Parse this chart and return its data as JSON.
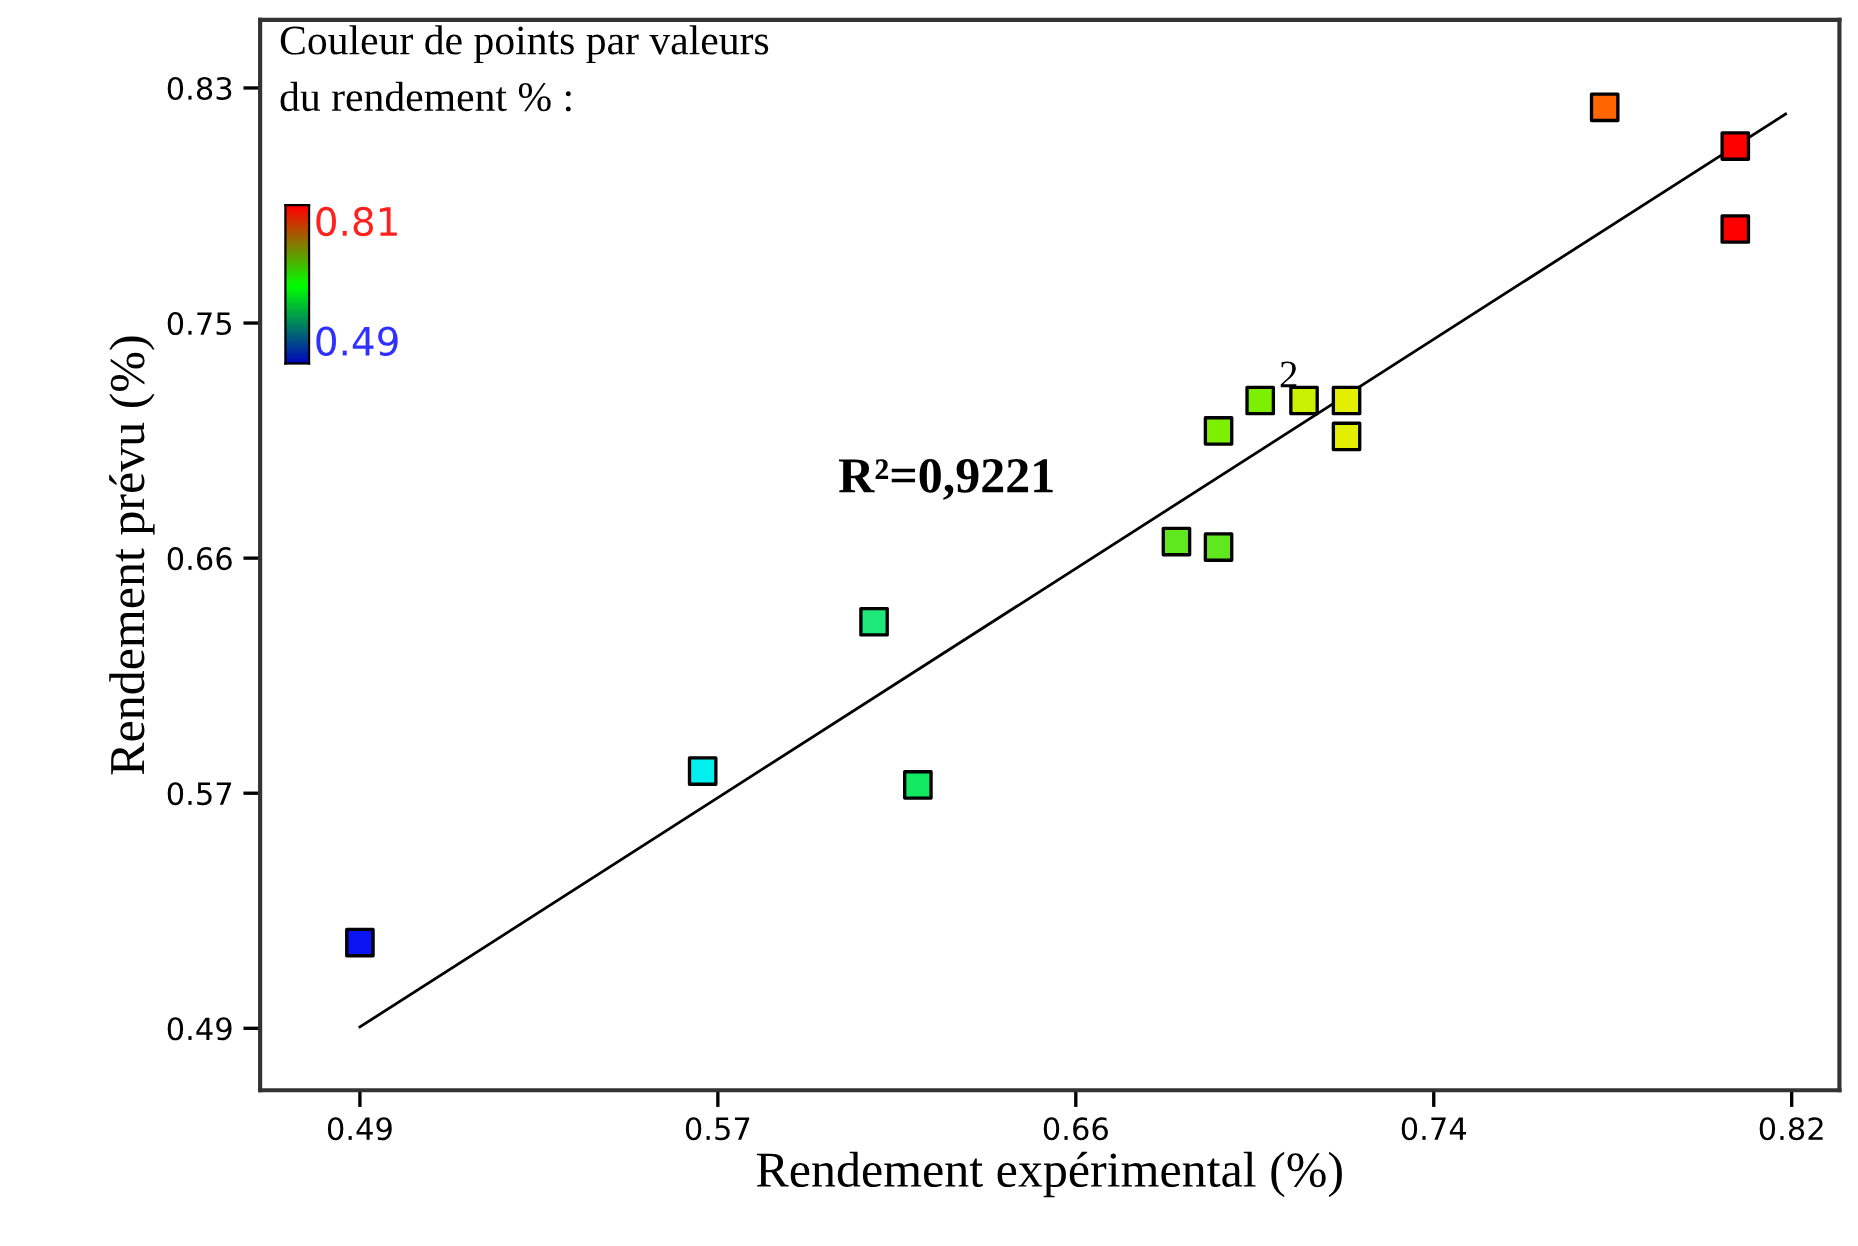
{
  "chart_data": {
    "type": "scatter",
    "xlabel": "Rendement expérimental (%)",
    "ylabel": "Rendement prévu (%)",
    "series": [
      {
        "type": "scatter",
        "marker": "square",
        "x": [
          0.49,
          0.569,
          0.6085,
          0.6186,
          0.6782,
          0.6879,
          0.6879,
          0.6975,
          0.7076,
          0.7174,
          0.7174,
          0.7769,
          0.807,
          0.807
        ],
        "values": [
          0.521,
          0.583,
          0.637,
          0.578,
          0.666,
          0.664,
          0.706,
          0.717,
          0.717,
          0.717,
          0.704,
          0.823,
          0.809,
          0.779
        ],
        "colors": [
          "#0a14f0",
          "#00f0f0",
          "#1fe87a",
          "#12e860",
          "#5fe81e",
          "#5fe81e",
          "#7cf000",
          "#7cf000",
          "#c8f000",
          "#e2f000",
          "#e2f000",
          "#ff6600",
          "#ff0000",
          "#ff0000"
        ]
      },
      {
        "type": "line",
        "color": "#000000",
        "x": [
          0.49,
          0.8186
        ],
        "values": [
          0.4905,
          0.8206
        ]
      }
    ],
    "xlim": [
      0.467,
      0.831
    ],
    "ylim": [
      0.4676,
      0.8546
    ],
    "xticks": [
      0.49,
      {
        "value": 0.5725,
        "label": "0.57"
      },
      {
        "value": 0.655,
        "label": "0.66"
      },
      {
        "value": 0.7375,
        "label": "0.74"
      },
      0.82
    ],
    "yticks": [
      0.49,
      {
        "value": 0.575,
        "label": "0.57"
      },
      0.66,
      {
        "value": 0.745,
        "label": "0.75"
      },
      0.83
    ],
    "annotations": [
      {
        "text": "2",
        "x": 0.7076,
        "y": 0.7168
      },
      "R²=0,9221",
      "Couleur de points par valeurs\ndu rendement % :",
      "0.81",
      "0.49"
    ],
    "grid": false
  }
}
